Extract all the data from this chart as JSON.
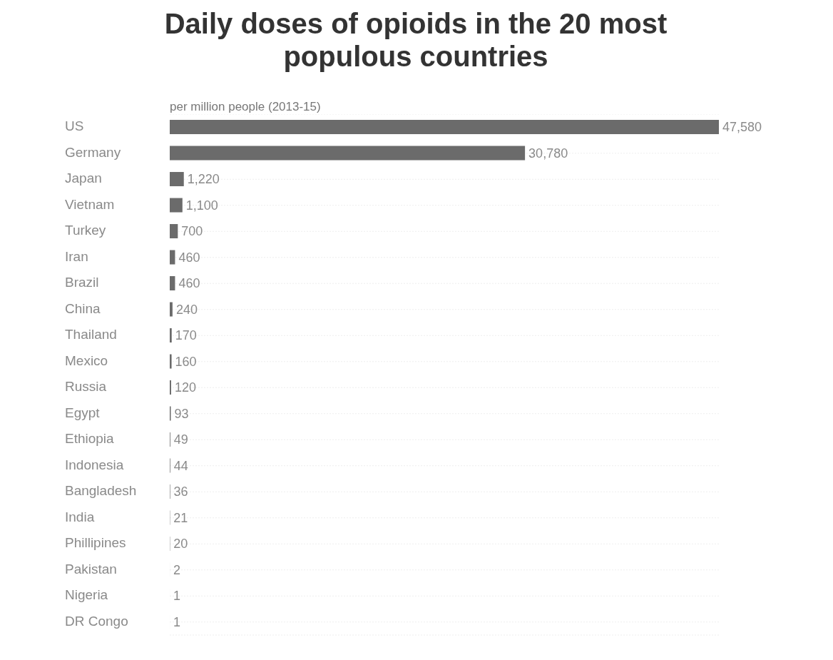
{
  "chart_data": {
    "type": "bar",
    "orientation": "horizontal",
    "title": "Daily doses of opioids in the 20 most populous countries",
    "subtitle": "per million people (2013-15)",
    "categories": [
      "US",
      "Germany",
      "Japan",
      "Vietnam",
      "Turkey",
      "Iran",
      "Brazil",
      "China",
      "Thailand",
      "Mexico",
      "Russia",
      "Egypt",
      "Ethiopia",
      "Indonesia",
      "Bangladesh",
      "India",
      "Phillipines",
      "Pakistan",
      "Nigeria",
      "DR Congo"
    ],
    "values": [
      47580,
      30780,
      1220,
      1100,
      700,
      460,
      460,
      240,
      170,
      160,
      120,
      93,
      49,
      44,
      36,
      21,
      20,
      2,
      1,
      1
    ],
    "value_labels": [
      "47,580",
      "30,780",
      "1,220",
      "1,100",
      "700",
      "460",
      "460",
      "240",
      "170",
      "160",
      "120",
      "93",
      "49",
      "44",
      "36",
      "21",
      "20",
      "2",
      "1",
      "1"
    ],
    "color": "#6b6b6b",
    "grid": "y"
  }
}
